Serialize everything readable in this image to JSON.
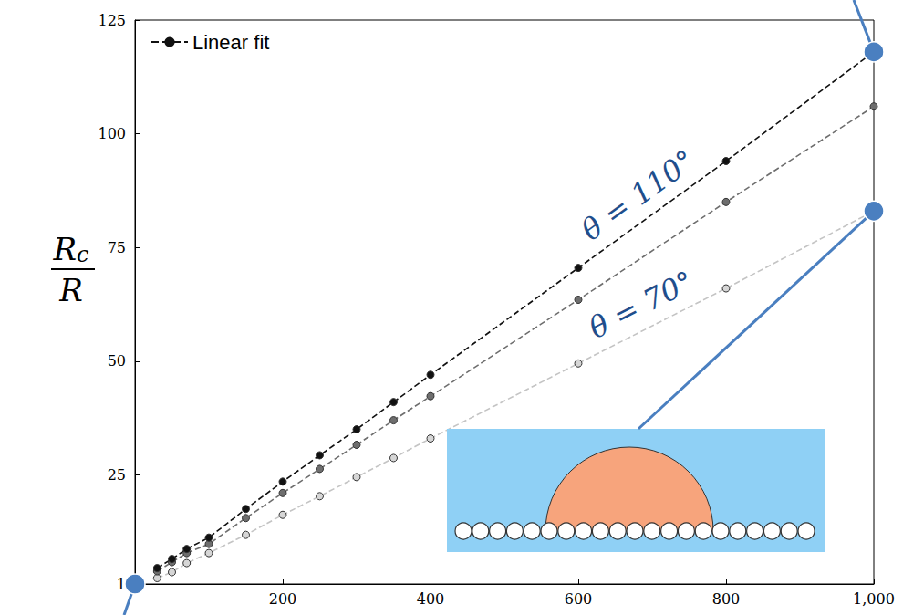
{
  "chart_data": {
    "type": "line",
    "ylabel": {
      "numerator": "R",
      "subscript": "c",
      "denominator": "R"
    },
    "x": [
      30,
      50,
      70,
      100,
      150,
      200,
      250,
      300,
      350,
      400,
      600,
      800,
      1000
    ],
    "series": [
      {
        "name": "θ = 110°",
        "color": "#111111",
        "marker": "circle",
        "line_style": "dashed",
        "values": [
          4.5,
          6.5,
          8.7,
          11.2,
          17.5,
          23.5,
          29.3,
          35,
          41,
          47,
          70.5,
          94,
          118
        ]
      },
      {
        "color": "#6e6e6e",
        "marker": "circle",
        "line_style": "dashed",
        "values": [
          3.8,
          5.8,
          7.8,
          9.8,
          15.5,
          21,
          26.3,
          31.6,
          37,
          42.3,
          63.5,
          85,
          106
        ]
      },
      {
        "name": "θ = 70°",
        "color": "#d6d6d6",
        "marker": "circle",
        "line_style": "dashed",
        "values": [
          2.3,
          3.6,
          5.6,
          7.8,
          11.8,
          16.2,
          20.3,
          24.5,
          28.7,
          33,
          49.5,
          66,
          83
        ]
      }
    ],
    "fit": {
      "label": "Linear fit",
      "color": "#111111",
      "line_style": "dashed"
    },
    "legend": "upper left",
    "xlim": [
      0,
      1000
    ],
    "xticks": [
      200,
      400,
      600,
      800,
      1000
    ],
    "ylim": [
      1,
      125
    ],
    "yticks": [
      1,
      25,
      50,
      75,
      100,
      125
    ],
    "grid": false
  }
}
